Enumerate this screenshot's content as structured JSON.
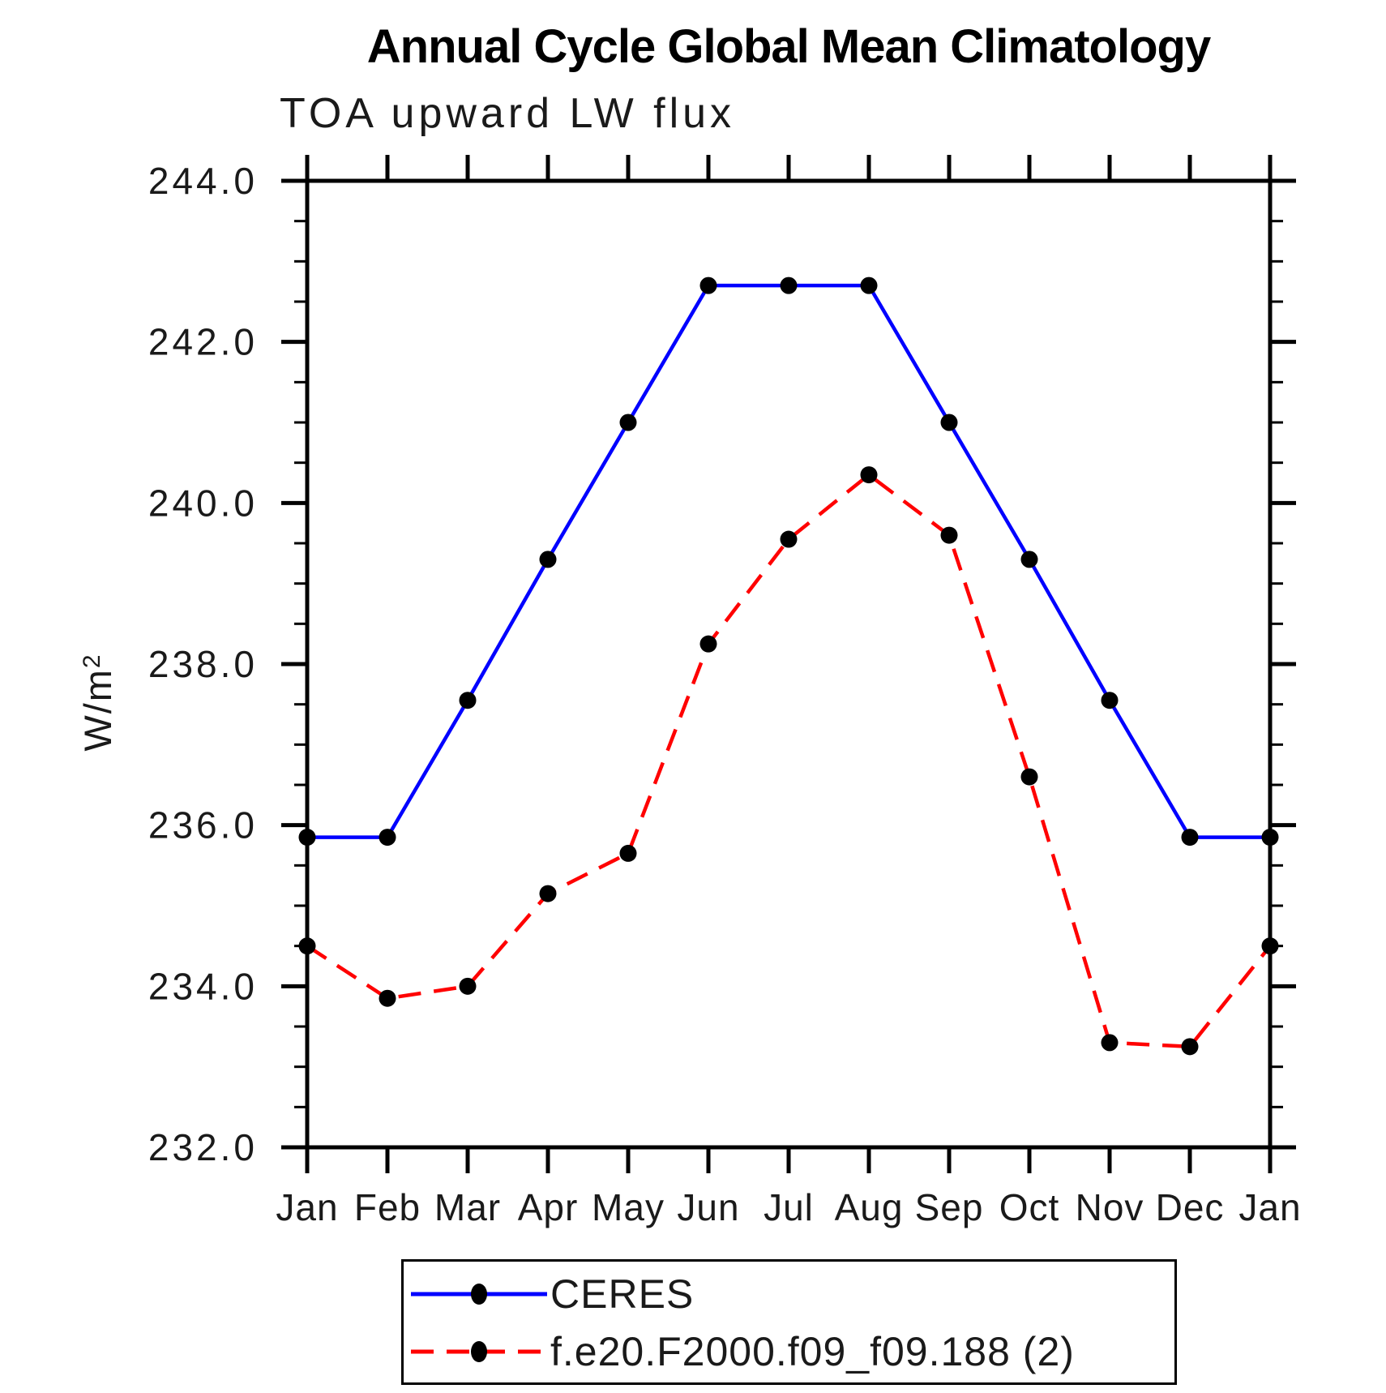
{
  "title": "Annual Cycle Global Mean Climatology",
  "subtitle": "TOA upward LW flux",
  "chart_data": {
    "type": "line",
    "x_categories": [
      "Jan",
      "Feb",
      "Mar",
      "Apr",
      "May",
      "Jun",
      "Jul",
      "Aug",
      "Sep",
      "Oct",
      "Nov",
      "Dec",
      "Jan"
    ],
    "ylabel_base": "W/m",
    "ylabel_exponent": "2",
    "ylim": [
      232.0,
      244.0
    ],
    "y_major_step": 2.0,
    "y_minor_step": 0.5,
    "y_tick_labels": [
      "232.0",
      "234.0",
      "236.0",
      "238.0",
      "240.0",
      "242.0",
      "244.0"
    ],
    "grid": "off",
    "legend_position": "bottom",
    "axis_color": "#000000",
    "marker_color": "#000000",
    "series": [
      {
        "name": "CERES",
        "color": "#0000ff",
        "style": "solid",
        "marker": "filled-circle",
        "values": [
          235.85,
          235.85,
          237.55,
          239.3,
          241.0,
          242.7,
          242.7,
          242.7,
          241.0,
          239.3,
          237.55,
          235.85,
          235.85
        ]
      },
      {
        "name": "f.e20.F2000.f09_f09.188 (2)",
        "color": "#ff0000",
        "style": "dashed",
        "marker": "filled-circle",
        "values": [
          234.5,
          233.85,
          234.0,
          235.15,
          235.65,
          238.25,
          239.55,
          240.35,
          239.6,
          236.6,
          233.3,
          233.25,
          234.5
        ]
      }
    ]
  }
}
